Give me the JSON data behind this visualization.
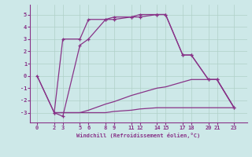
{
  "xlabel": "Windchill (Refroidissement éolien,°C)",
  "background_color": "#cde8e8",
  "grid_color": "#b0d0c8",
  "line_color": "#883388",
  "xticks": [
    0,
    2,
    3,
    5,
    6,
    8,
    9,
    11,
    12,
    14,
    15,
    17,
    18,
    20,
    21,
    23
  ],
  "yticks": [
    -3,
    -2,
    -1,
    0,
    1,
    2,
    3,
    4,
    5
  ],
  "xlim": [
    -0.8,
    24.5
  ],
  "ylim": [
    -3.8,
    5.8
  ],
  "lines": [
    {
      "comment": "upper line with markers: 0,0 -> 2,-3 -> 3,3 -> 5,3 -> 6,4.6 -> 8,4.6 -> 9,4.8 -> 11,4.8 -> 12,5 -> 14,5 -> 15,5 -> 17,1.7 -> 18,1.7 -> 20,-0.3 -> 21,-0.3 -> 23,-2.6",
      "x": [
        0,
        2,
        3,
        5,
        6,
        8,
        9,
        11,
        12,
        14,
        15,
        17,
        18,
        20,
        21,
        23
      ],
      "y": [
        0,
        -3,
        3,
        3,
        4.6,
        4.6,
        4.8,
        4.8,
        5.0,
        5.0,
        5.0,
        1.7,
        1.7,
        -0.3,
        -0.3,
        -2.6
      ],
      "marker": true
    },
    {
      "comment": "second line with markers: 2,-3 -> 3,-3.3 -> 5,2.5 -> 6,3 -> 8,4.6 -> ...",
      "x": [
        2,
        3,
        5,
        6,
        8,
        9,
        11,
        12,
        14,
        15,
        17,
        18,
        20,
        21,
        23
      ],
      "y": [
        -3.0,
        -3.3,
        2.5,
        3.0,
        4.6,
        4.6,
        4.8,
        4.8,
        5.0,
        5.0,
        1.7,
        1.7,
        -0.3,
        -0.3,
        -2.6
      ],
      "marker": true
    },
    {
      "x": [
        0,
        2,
        3,
        5,
        6,
        8,
        9,
        11,
        12,
        14,
        15,
        17,
        18,
        20,
        21,
        23
      ],
      "y": [
        0,
        -3,
        -3,
        -3,
        -2.8,
        -2.3,
        -2.1,
        -1.6,
        -1.4,
        -1.0,
        -0.9,
        -0.5,
        -0.3,
        -0.3,
        -0.3,
        -2.6
      ],
      "marker": false
    },
    {
      "x": [
        2,
        3,
        5,
        6,
        8,
        9,
        11,
        12,
        14,
        15,
        17,
        18,
        20,
        21,
        23
      ],
      "y": [
        -3.0,
        -3.0,
        -3.0,
        -3.0,
        -3.0,
        -2.9,
        -2.8,
        -2.7,
        -2.6,
        -2.6,
        -2.6,
        -2.6,
        -2.6,
        -2.6,
        -2.6
      ],
      "marker": false
    }
  ]
}
